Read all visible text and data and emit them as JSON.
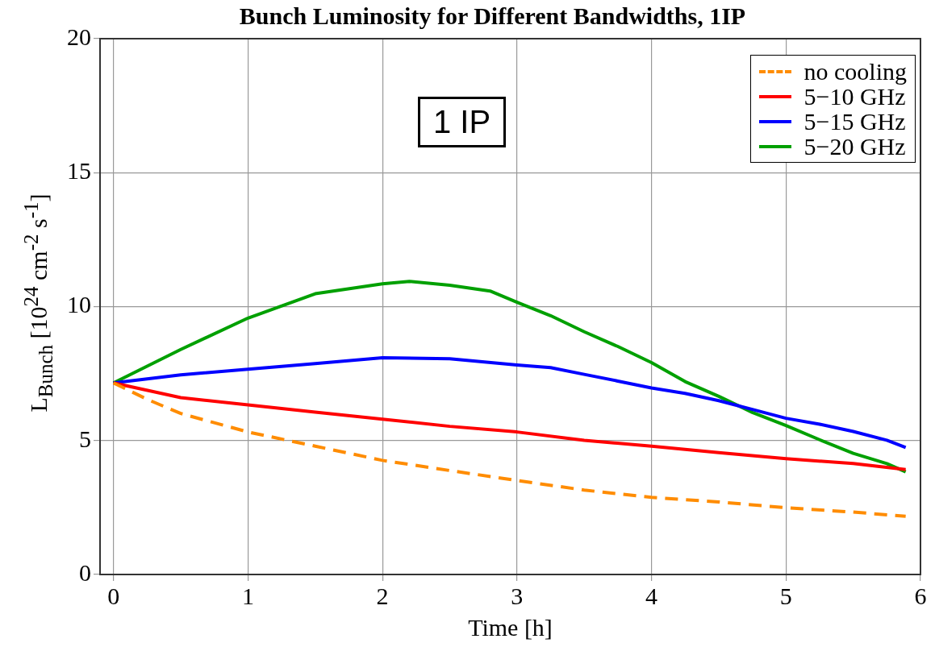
{
  "chart_data": {
    "type": "line",
    "title": "Bunch Luminosity for Different Bandwidths, 1IP",
    "xlabel": "Time [h]",
    "ylabel": "L$_{Bunch}$ [10$^{24}$ cm$^{-2}$ s$^{-1}$]",
    "xlim": [
      -0.1,
      6
    ],
    "xticks": [
      0,
      1,
      2,
      3,
      4,
      5,
      6
    ],
    "ylim": [
      0,
      20
    ],
    "yticks": [
      0,
      5,
      10,
      15,
      20
    ],
    "grid": true,
    "legend": "top right",
    "marker": "none",
    "annotations": [
      "1 IP"
    ],
    "series": [
      {
        "name": "no cooling",
        "color": "#ff8c00",
        "line_style": "dashed",
        "x": [
          0,
          0.25,
          0.5,
          1,
          1.5,
          2,
          2.5,
          3,
          3.5,
          4,
          4.5,
          5,
          5.5,
          5.89
        ],
        "values": [
          7.15,
          6.54,
          6.01,
          5.32,
          4.79,
          4.26,
          3.88,
          3.51,
          3.15,
          2.88,
          2.71,
          2.49,
          2.33,
          2.17
        ]
      },
      {
        "name": "5−10 GHz",
        "color": "#ff0000",
        "x": [
          0,
          0.5,
          1,
          1.5,
          2,
          2.5,
          3,
          3.5,
          4,
          4.5,
          5,
          5.5,
          5.89
        ],
        "values": [
          7.15,
          6.6,
          6.33,
          6.06,
          5.8,
          5.53,
          5.32,
          5.01,
          4.79,
          4.55,
          4.32,
          4.14,
          3.92
        ]
      },
      {
        "name": "5−15 GHz",
        "color": "#0000ff",
        "x": [
          0,
          0.5,
          1,
          1.5,
          2,
          2.5,
          3,
          3.25,
          3.5,
          3.75,
          4,
          4.25,
          4.5,
          4.75,
          5,
          5.25,
          5.5,
          5.75,
          5.89
        ],
        "values": [
          7.15,
          7.45,
          7.66,
          7.87,
          8.09,
          8.05,
          7.82,
          7.72,
          7.47,
          7.22,
          6.96,
          6.76,
          6.49,
          6.16,
          5.83,
          5.61,
          5.34,
          5.01,
          4.74
        ]
      },
      {
        "name": "5−20 GHz",
        "color": "#00a000",
        "x": [
          0,
          0.5,
          1,
          1.5,
          2,
          2.2,
          2.5,
          2.8,
          3,
          3.25,
          3.5,
          3.75,
          4,
          4.25,
          4.5,
          4.75,
          5,
          5.25,
          5.5,
          5.75,
          5.89
        ],
        "values": [
          7.15,
          8.4,
          9.57,
          10.48,
          10.85,
          10.94,
          10.8,
          10.58,
          10.16,
          9.66,
          9.06,
          8.51,
          7.91,
          7.2,
          6.65,
          6.05,
          5.56,
          5.03,
          4.52,
          4.14,
          3.83
        ]
      }
    ]
  }
}
